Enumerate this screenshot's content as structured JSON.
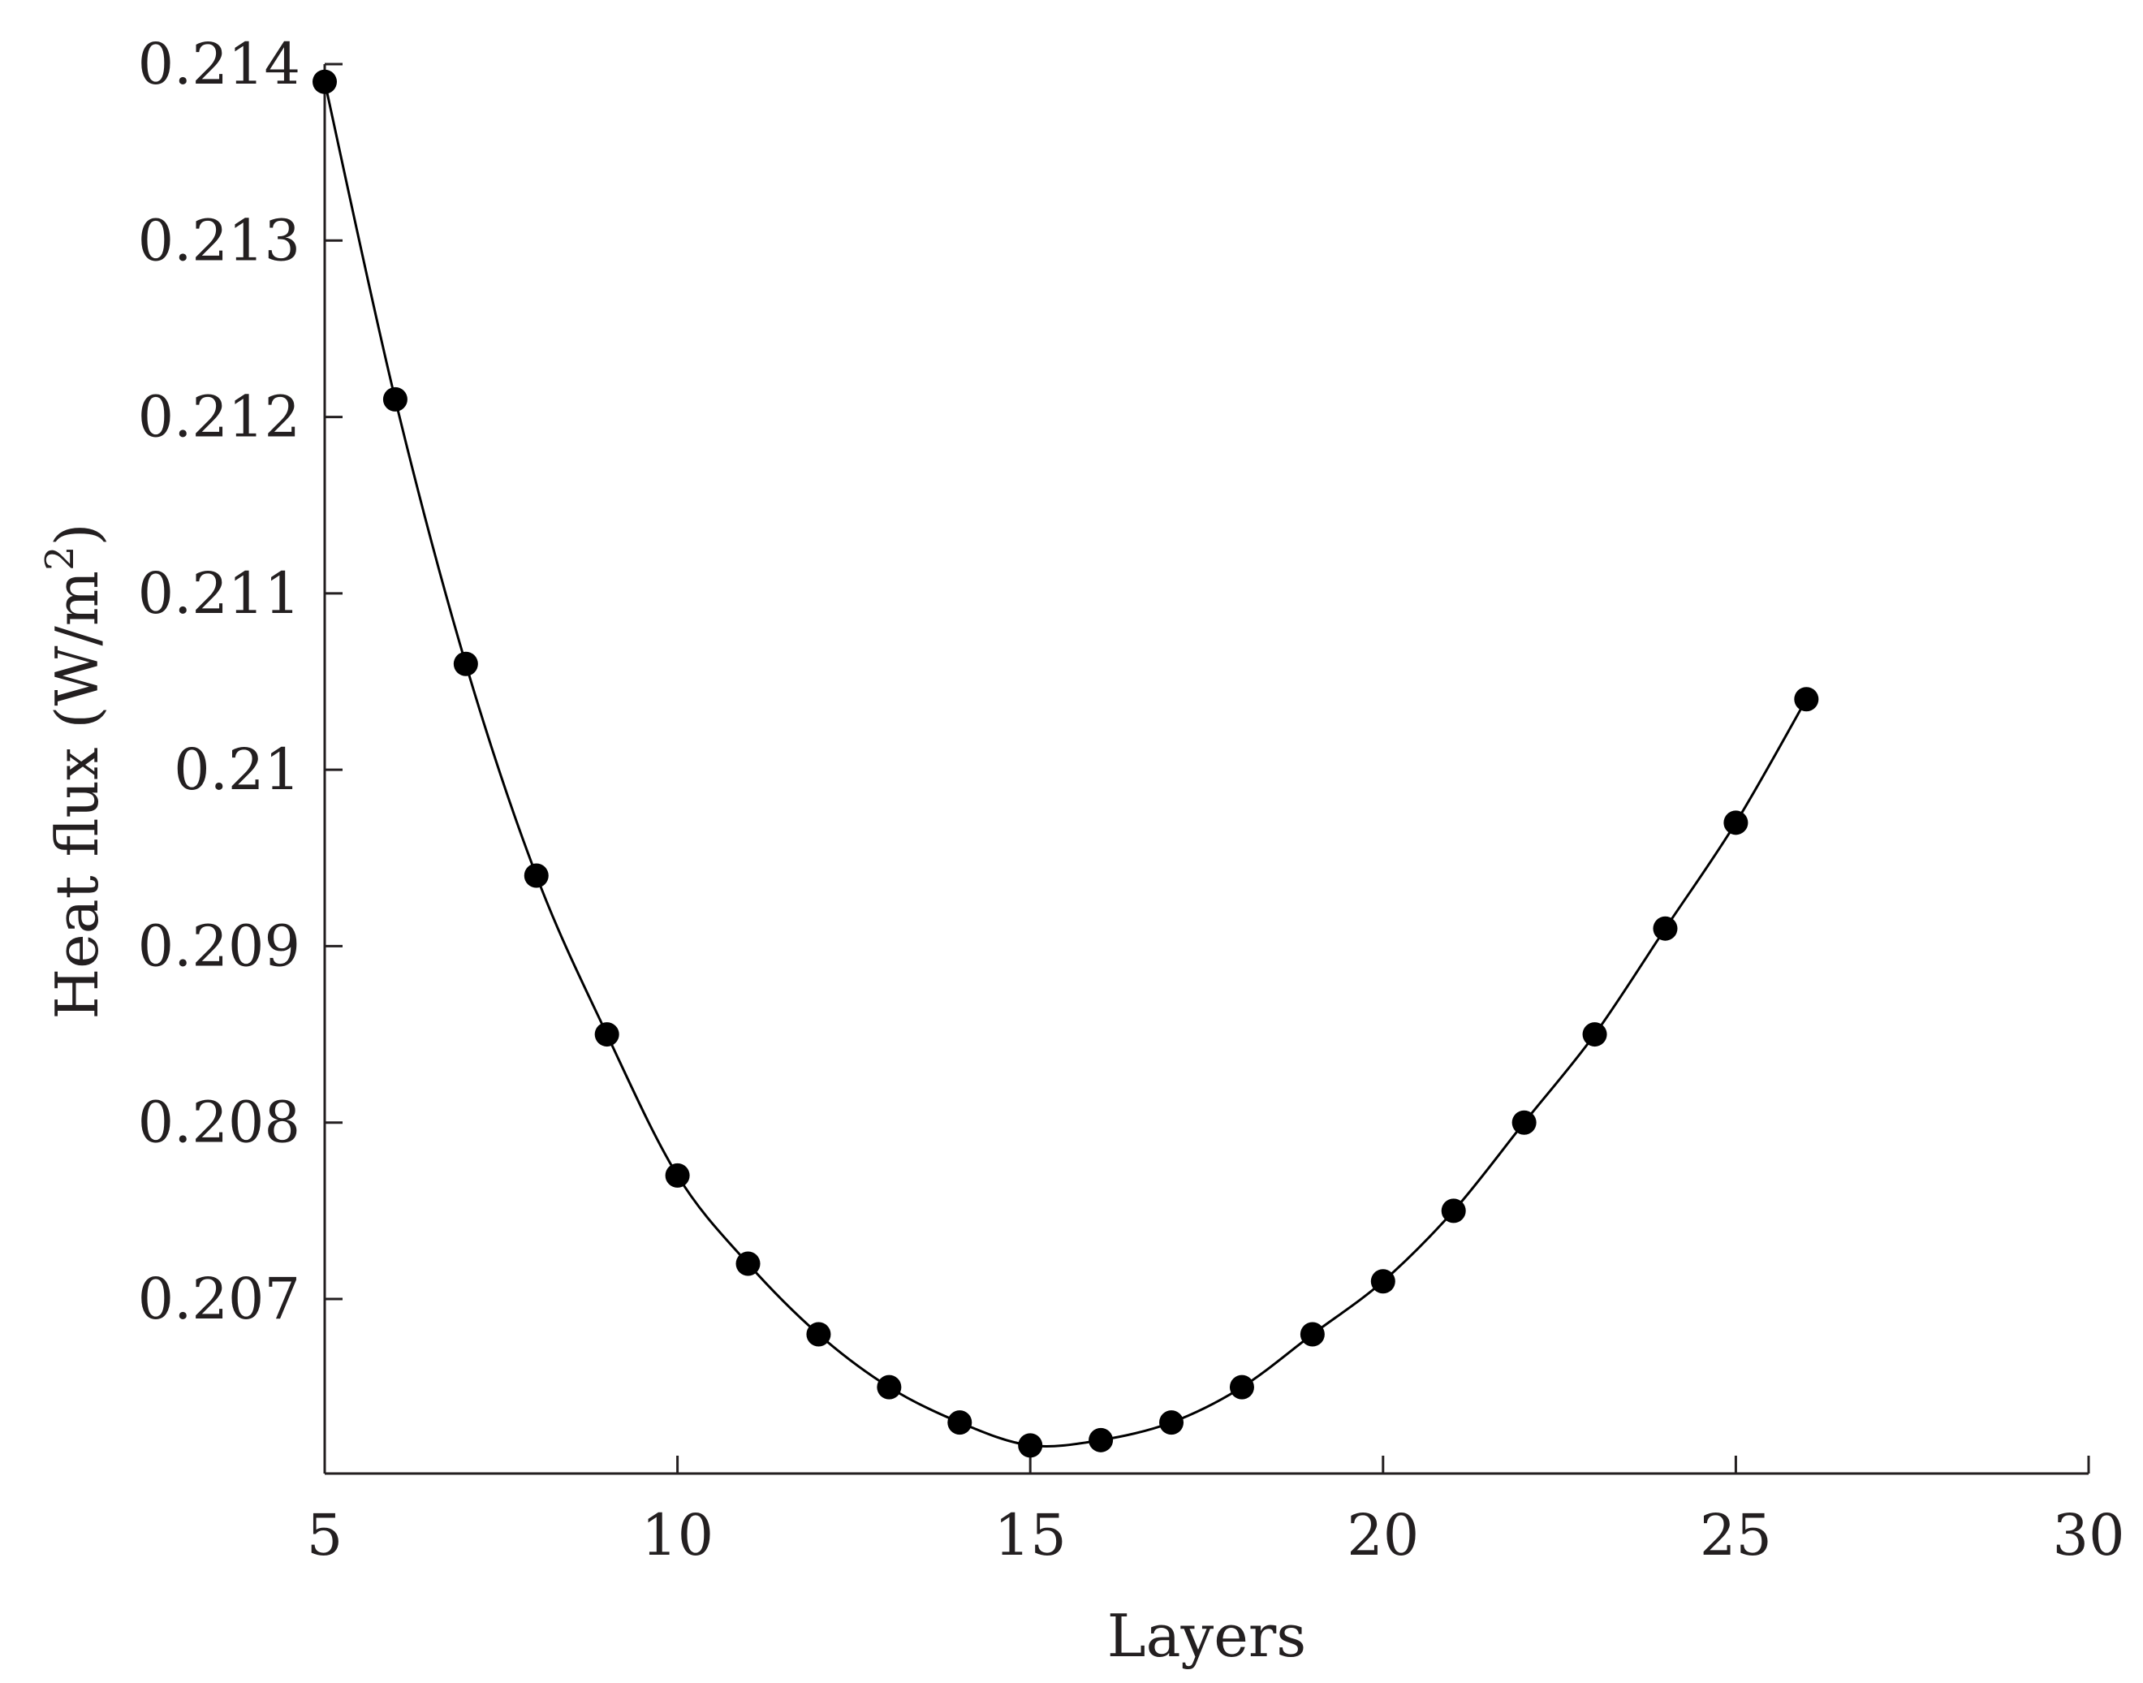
{
  "chart_data": {
    "type": "line",
    "title": "",
    "xlabel": "Layers",
    "ylabel_main": "Heat flux (W/m",
    "ylabel_sup": "2",
    "ylabel_close": ")",
    "xlim": [
      5,
      30
    ],
    "ylim": [
      0.206,
      0.214
    ],
    "x_ticks": [
      5,
      10,
      15,
      20,
      25,
      30
    ],
    "x_tick_labels": [
      "5",
      "10",
      "15",
      "20",
      "25",
      "30"
    ],
    "y_ticks": [
      0.207,
      0.208,
      0.209,
      0.21,
      0.211,
      0.212,
      0.213,
      0.214
    ],
    "y_tick_labels": [
      "0.207",
      "0.208",
      "0.209",
      "0.21",
      "0.211",
      "0.212",
      "0.213",
      "0.214"
    ],
    "grid": false,
    "legend": "none",
    "series": [
      {
        "marker": "filled-circle",
        "color": "#000000",
        "x": [
          5,
          6,
          7,
          8,
          9,
          10,
          11,
          12,
          13,
          14,
          15,
          16,
          17,
          18,
          19,
          20,
          21,
          22,
          23,
          24,
          25,
          26
        ],
        "y": [
          0.2139,
          0.2121,
          0.2106,
          0.2094,
          0.2085,
          0.2077,
          0.2072,
          0.2068,
          0.2065,
          0.2063,
          0.20617,
          0.2062,
          0.2063,
          0.2065,
          0.2068,
          0.2071,
          0.2075,
          0.208,
          0.2085,
          0.2091,
          0.2097,
          0.2104
        ]
      }
    ]
  }
}
